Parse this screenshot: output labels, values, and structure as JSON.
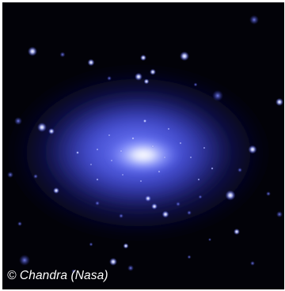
{
  "photo": {
    "subject": "X-ray image of a galaxy cluster with point sources",
    "background_color": "#020208",
    "glow_color": "#4a55e8",
    "core_color": "#ffffff"
  },
  "credit": {
    "text": "© Chandra (Nasa)",
    "color": "#ffffff"
  }
}
